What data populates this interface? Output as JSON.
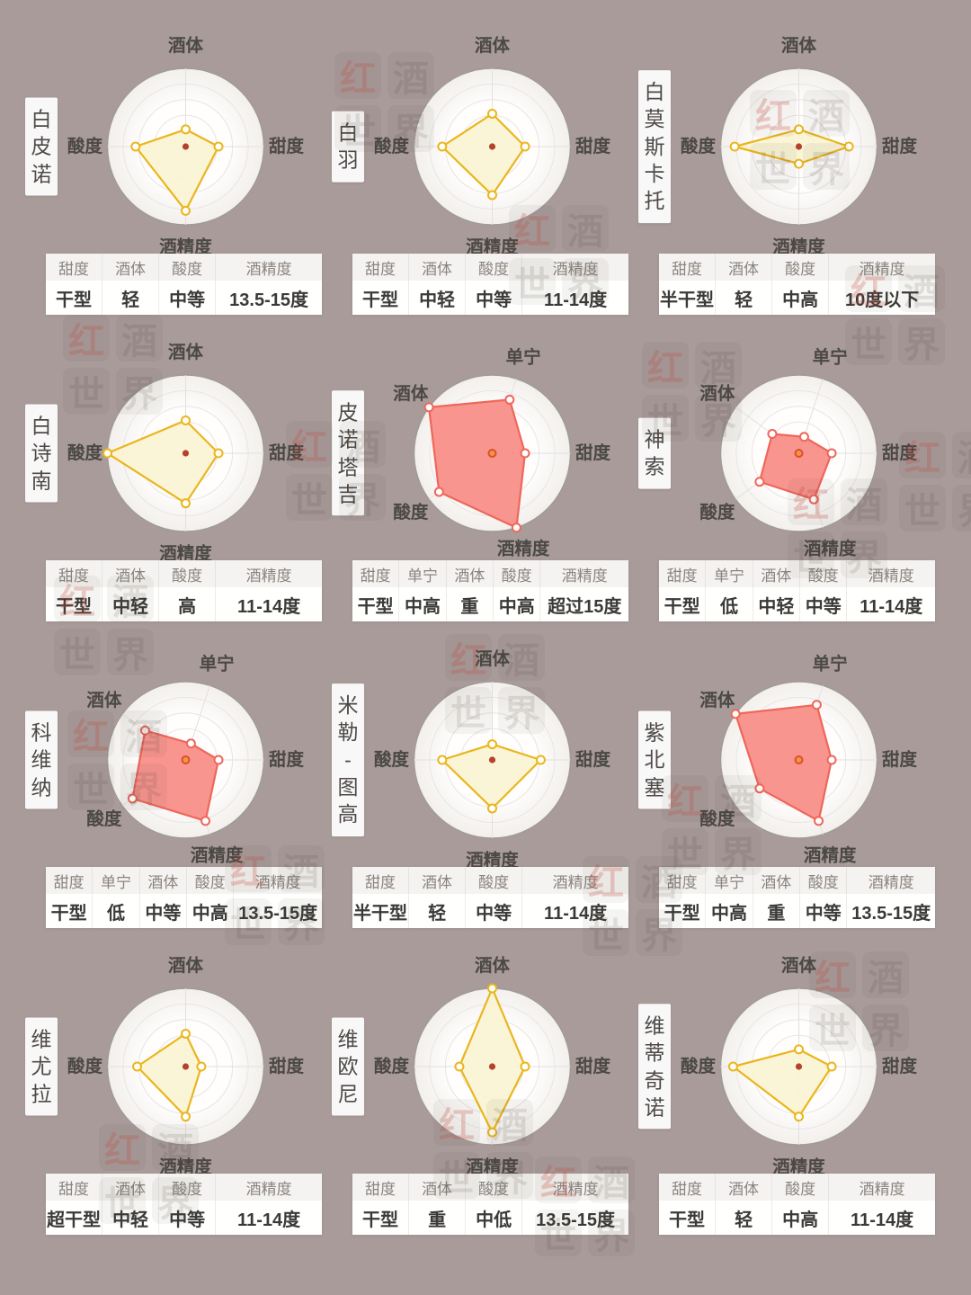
{
  "colors": {
    "background": "#a89b99",
    "panel": "#ffffff",
    "table_header_bg": "#f5f3f1",
    "disc_fill_center": "#fffefd",
    "disc_fill_edge": "#f2efec",
    "disc_edge": "#a09b97",
    "ring": "#e8e5e2",
    "spoke": "#e3e0dd",
    "axis_label": "#4b4845",
    "white_wine_stroke": "#eab61e",
    "white_wine_fill": "#fbf4d3",
    "white_wine_vertex_fill": "#fffef7",
    "white_wine_center_dot": "#b5432c",
    "red_wine_stroke": "#ee675a",
    "red_wine_fill": "#f9918a",
    "red_wine_vertex_fill": "#ffffff",
    "red_wine_center_fill": "#f1953e",
    "red_wine_center_stroke": "#dc4f33"
  },
  "watermark": {
    "chars": [
      "红",
      "酒",
      "世",
      "界"
    ]
  },
  "chart_data": [
    {
      "type": "radar",
      "title": "白皮诺",
      "title_chars": [
        "白",
        "皮",
        "诺"
      ],
      "scheme": "white",
      "axes": [
        "酒体",
        "甜度",
        "酒精度",
        "酸度"
      ],
      "angles_deg": [
        90,
        0,
        270,
        180
      ],
      "values": [
        1.1,
        2.1,
        4.1,
        3.2
      ],
      "range": [
        0,
        5
      ],
      "rings": 5,
      "table": {
        "headers": [
          "甜度",
          "酒体",
          "酸度",
          "酒精度"
        ],
        "values": [
          "干型",
          "轻",
          "中等",
          "13.5-15度"
        ]
      }
    },
    {
      "type": "radar",
      "title": "白羽",
      "title_chars": [
        "白",
        "羽"
      ],
      "scheme": "white",
      "axes": [
        "酒体",
        "甜度",
        "酒精度",
        "酸度"
      ],
      "angles_deg": [
        90,
        0,
        270,
        180
      ],
      "values": [
        2.1,
        2.1,
        3.1,
        3.2
      ],
      "range": [
        0,
        5
      ],
      "rings": 5,
      "table": {
        "headers": [
          "甜度",
          "酒体",
          "酸度",
          "酒精度"
        ],
        "values": [
          "干型",
          "中轻",
          "中等",
          "11-14度"
        ]
      }
    },
    {
      "type": "radar",
      "title": "白莫斯卡托",
      "title_chars": [
        "白",
        "莫",
        "斯",
        "卡",
        "托"
      ],
      "scheme": "white",
      "axes": [
        "酒体",
        "甜度",
        "酒精度",
        "酸度"
      ],
      "angles_deg": [
        90,
        0,
        270,
        180
      ],
      "values": [
        1.1,
        3.2,
        1.1,
        4.1
      ],
      "range": [
        0,
        5
      ],
      "rings": 5,
      "table": {
        "headers": [
          "甜度",
          "酒体",
          "酸度",
          "酒精度"
        ],
        "values": [
          "半干型",
          "轻",
          "中高",
          "10度以下"
        ]
      }
    },
    {
      "type": "radar",
      "title": "白诗南",
      "title_chars": [
        "白",
        "诗",
        "南"
      ],
      "scheme": "white",
      "axes": [
        "酒体",
        "甜度",
        "酒精度",
        "酸度"
      ],
      "angles_deg": [
        90,
        0,
        270,
        180
      ],
      "values": [
        2.1,
        2.1,
        3.2,
        5.0
      ],
      "range": [
        0,
        5
      ],
      "rings": 5,
      "table": {
        "headers": [
          "甜度",
          "酒体",
          "酸度",
          "酒精度"
        ],
        "values": [
          "干型",
          "中轻",
          "高",
          "11-14度"
        ]
      }
    },
    {
      "type": "radar",
      "title": "皮诺塔吉",
      "title_chars": [
        "皮",
        "诺",
        "塔",
        "吉"
      ],
      "scheme": "red",
      "axes": [
        "单宁",
        "甜度",
        "酒精度",
        "酸度",
        "酒体"
      ],
      "angles_deg": [
        72,
        0,
        288,
        216,
        144
      ],
      "values": [
        3.6,
        2.1,
        5.0,
        4.2,
        5.0
      ],
      "range": [
        0,
        5
      ],
      "rings": 5,
      "table": {
        "headers": [
          "甜度",
          "单宁",
          "酒体",
          "酸度",
          "酒精度"
        ],
        "values": [
          "干型",
          "中高",
          "重",
          "中高",
          "超过15度"
        ]
      }
    },
    {
      "type": "radar",
      "title": "神索",
      "title_chars": [
        "神",
        "索"
      ],
      "scheme": "red",
      "axes": [
        "单宁",
        "甜度",
        "酒精度",
        "酸度",
        "酒体"
      ],
      "angles_deg": [
        72,
        0,
        288,
        216,
        144
      ],
      "values": [
        1.1,
        2.1,
        3.1,
        3.1,
        2.1
      ],
      "range": [
        0,
        5
      ],
      "rings": 5,
      "table": {
        "headers": [
          "甜度",
          "单宁",
          "酒体",
          "酸度",
          "酒精度"
        ],
        "values": [
          "干型",
          "低",
          "中轻",
          "中等",
          "11-14度"
        ]
      }
    },
    {
      "type": "radar",
      "title": "科维纳",
      "title_chars": [
        "科",
        "维",
        "纳"
      ],
      "scheme": "red",
      "axes": [
        "单宁",
        "甜度",
        "酒精度",
        "酸度",
        "酒体"
      ],
      "angles_deg": [
        72,
        0,
        288,
        216,
        144
      ],
      "values": [
        1.1,
        2.1,
        4.1,
        4.2,
        3.2
      ],
      "range": [
        0,
        5
      ],
      "rings": 5,
      "table": {
        "headers": [
          "甜度",
          "单宁",
          "酒体",
          "酸度",
          "酒精度"
        ],
        "values": [
          "干型",
          "低",
          "中等",
          "中高",
          "13.5-15度"
        ]
      }
    },
    {
      "type": "radar",
      "title": "米勒-图高",
      "title_chars": [
        "米",
        "勒",
        "-",
        "图",
        "高"
      ],
      "scheme": "white",
      "axes": [
        "酒体",
        "甜度",
        "酒精度",
        "酸度"
      ],
      "angles_deg": [
        90,
        0,
        270,
        180
      ],
      "values": [
        1.0,
        3.1,
        3.1,
        3.2
      ],
      "range": [
        0,
        5
      ],
      "rings": 5,
      "table": {
        "headers": [
          "甜度",
          "酒体",
          "酸度",
          "酒精度"
        ],
        "values": [
          "半干型",
          "轻",
          "中等",
          "11-14度"
        ]
      }
    },
    {
      "type": "radar",
      "title": "紫北塞",
      "title_chars": [
        "紫",
        "北",
        "塞"
      ],
      "scheme": "red",
      "axes": [
        "单宁",
        "甜度",
        "酒精度",
        "酸度",
        "酒体"
      ],
      "angles_deg": [
        72,
        0,
        288,
        216,
        144
      ],
      "values": [
        3.7,
        2.1,
        4.1,
        3.1,
        5.0
      ],
      "range": [
        0,
        5
      ],
      "rings": 5,
      "table": {
        "headers": [
          "甜度",
          "单宁",
          "酒体",
          "酸度",
          "酒精度"
        ],
        "values": [
          "干型",
          "中高",
          "重",
          "中等",
          "13.5-15度"
        ]
      }
    },
    {
      "type": "radar",
      "title": "维尤拉",
      "title_chars": [
        "维",
        "尤",
        "拉"
      ],
      "scheme": "white",
      "axes": [
        "酒体",
        "甜度",
        "酒精度",
        "酸度"
      ],
      "angles_deg": [
        90,
        0,
        270,
        180
      ],
      "values": [
        2.1,
        1.0,
        3.2,
        3.1
      ],
      "range": [
        0,
        5
      ],
      "rings": 5,
      "table": {
        "headers": [
          "甜度",
          "酒体",
          "酸度",
          "酒精度"
        ],
        "values": [
          "超干型",
          "中轻",
          "中等",
          "11-14度"
        ]
      }
    },
    {
      "type": "radar",
      "title": "维欧尼",
      "title_chars": [
        "维",
        "欧",
        "尼"
      ],
      "scheme": "white",
      "axes": [
        "酒体",
        "甜度",
        "酒精度",
        "酸度"
      ],
      "angles_deg": [
        90,
        0,
        270,
        180
      ],
      "values": [
        5.0,
        2.1,
        4.2,
        2.1
      ],
      "range": [
        0,
        5
      ],
      "rings": 5,
      "table": {
        "headers": [
          "甜度",
          "酒体",
          "酸度",
          "酒精度"
        ],
        "values": [
          "干型",
          "重",
          "中低",
          "13.5-15度"
        ]
      }
    },
    {
      "type": "radar",
      "title": "维蒂奇诺",
      "title_chars": [
        "维",
        "蒂",
        "奇",
        "诺"
      ],
      "scheme": "white",
      "axes": [
        "酒体",
        "甜度",
        "酒精度",
        "酸度"
      ],
      "angles_deg": [
        90,
        0,
        270,
        180
      ],
      "values": [
        1.1,
        2.1,
        3.2,
        4.2
      ],
      "range": [
        0,
        5
      ],
      "rings": 5,
      "table": {
        "headers": [
          "甜度",
          "酒体",
          "酸度",
          "酒精度"
        ],
        "values": [
          "干型",
          "轻",
          "中高",
          "11-14度"
        ]
      }
    }
  ]
}
